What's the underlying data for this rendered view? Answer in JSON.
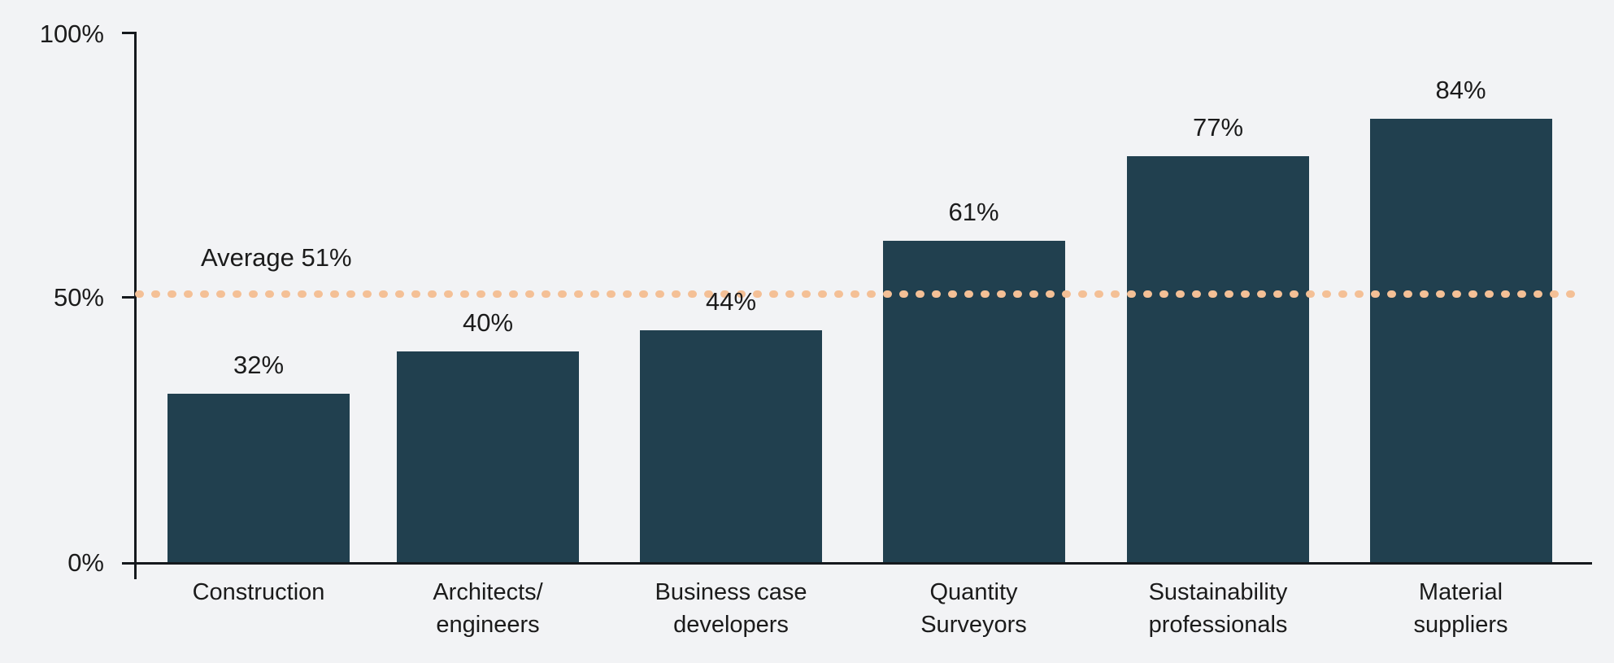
{
  "chart_data": {
    "type": "bar",
    "categories": [
      "Construction",
      "Architects/\nengineers",
      "Business case\ndevelopers",
      "Quantity\nSurveyors",
      "Sustainability\nprofessionals",
      "Material\nsuppliers"
    ],
    "values": [
      32,
      40,
      44,
      61,
      77,
      84
    ],
    "value_labels": [
      "32%",
      "40%",
      "44%",
      "61%",
      "77%",
      "84%"
    ],
    "average": {
      "value": 51,
      "label": "Average 51%"
    },
    "y_axis": {
      "min": 0,
      "max": 100,
      "ticks": [
        {
          "value": 0,
          "label": "0%"
        },
        {
          "value": 50,
          "label": "50%"
        },
        {
          "value": 100,
          "label": "100%"
        }
      ]
    },
    "grid": false,
    "legend": "none",
    "colors": {
      "bar": "#21404F",
      "average_line": "#F4C096",
      "background": "#F2F3F5",
      "text": "#1B1B1B",
      "axis": "#15191D"
    }
  }
}
